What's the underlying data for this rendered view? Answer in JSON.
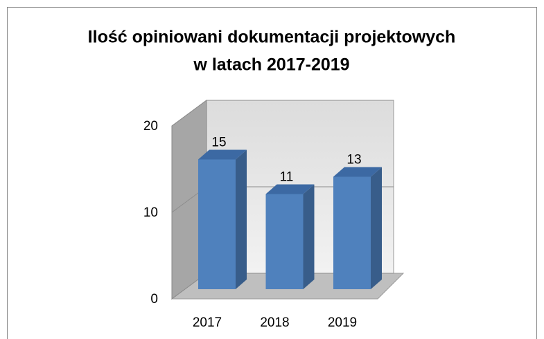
{
  "chart_data": {
    "type": "bar3d",
    "title": [
      "Ilość opiniowani dokumentacji projektowych",
      "w  latach  2017-2019"
    ],
    "categories": [
      "2017",
      "2018",
      "2019"
    ],
    "values": [
      15,
      11,
      13
    ],
    "color": "#4f81bd",
    "ylim": [
      0,
      20
    ],
    "yticks": [
      0,
      10,
      20
    ],
    "grid": true
  }
}
